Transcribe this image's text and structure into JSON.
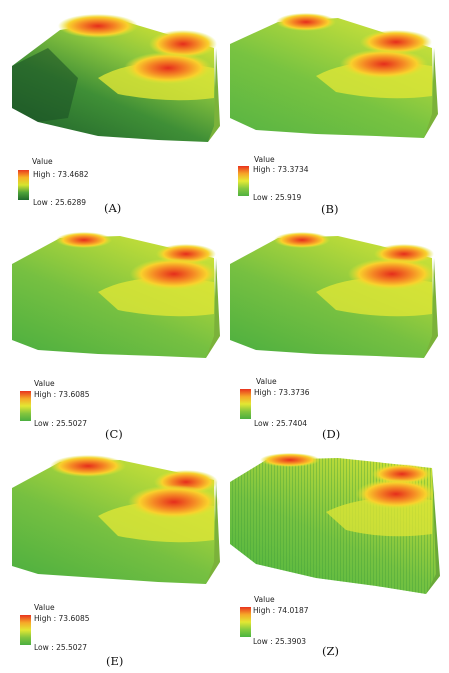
{
  "panels": [
    {
      "id": "A",
      "caption": "(A)",
      "legend_title": "Value",
      "high": "High : 73.4682",
      "low": "Low : 25.6289",
      "colors": [
        "#1f6b2c",
        "#4fa33a",
        "#d6e42e",
        "#f7b426",
        "#e93a1f"
      ]
    },
    {
      "id": "B",
      "caption": "(B)",
      "legend_title": "Value",
      "high": "High : 73.3734",
      "low": "Low : 25.919",
      "colors": [
        "#4fb040",
        "#86c940",
        "#e6ea35",
        "#f6a327",
        "#e9321e"
      ]
    },
    {
      "id": "C",
      "caption": "(C)",
      "legend_title": "Value",
      "high": "High : 73.6085",
      "low": "Low : 25.5027",
      "colors": [
        "#4aae40",
        "#83c53e",
        "#e3e733",
        "#f6a728",
        "#e8331e"
      ]
    },
    {
      "id": "D",
      "caption": "(D)",
      "legend_title": "Value",
      "high": "High : 73.3736",
      "low": "Low : 25.7404",
      "colors": [
        "#4aae40",
        "#83c53e",
        "#e3e733",
        "#f6a728",
        "#e8331e"
      ]
    },
    {
      "id": "E",
      "caption": "(E)",
      "legend_title": "Value",
      "high": "High : 73.6085",
      "low": "Low : 25.5027",
      "colors": [
        "#4aae40",
        "#83c53e",
        "#e3e733",
        "#f6a728",
        "#e8331e"
      ]
    },
    {
      "id": "Z",
      "caption": "(Z)",
      "legend_title": "Value",
      "high": "High : 74.0187",
      "low": "Low : 25.3903",
      "colors": [
        "#4ab440",
        "#86cc3f",
        "#e3e733",
        "#f6a728",
        "#e8331e"
      ]
    }
  ]
}
